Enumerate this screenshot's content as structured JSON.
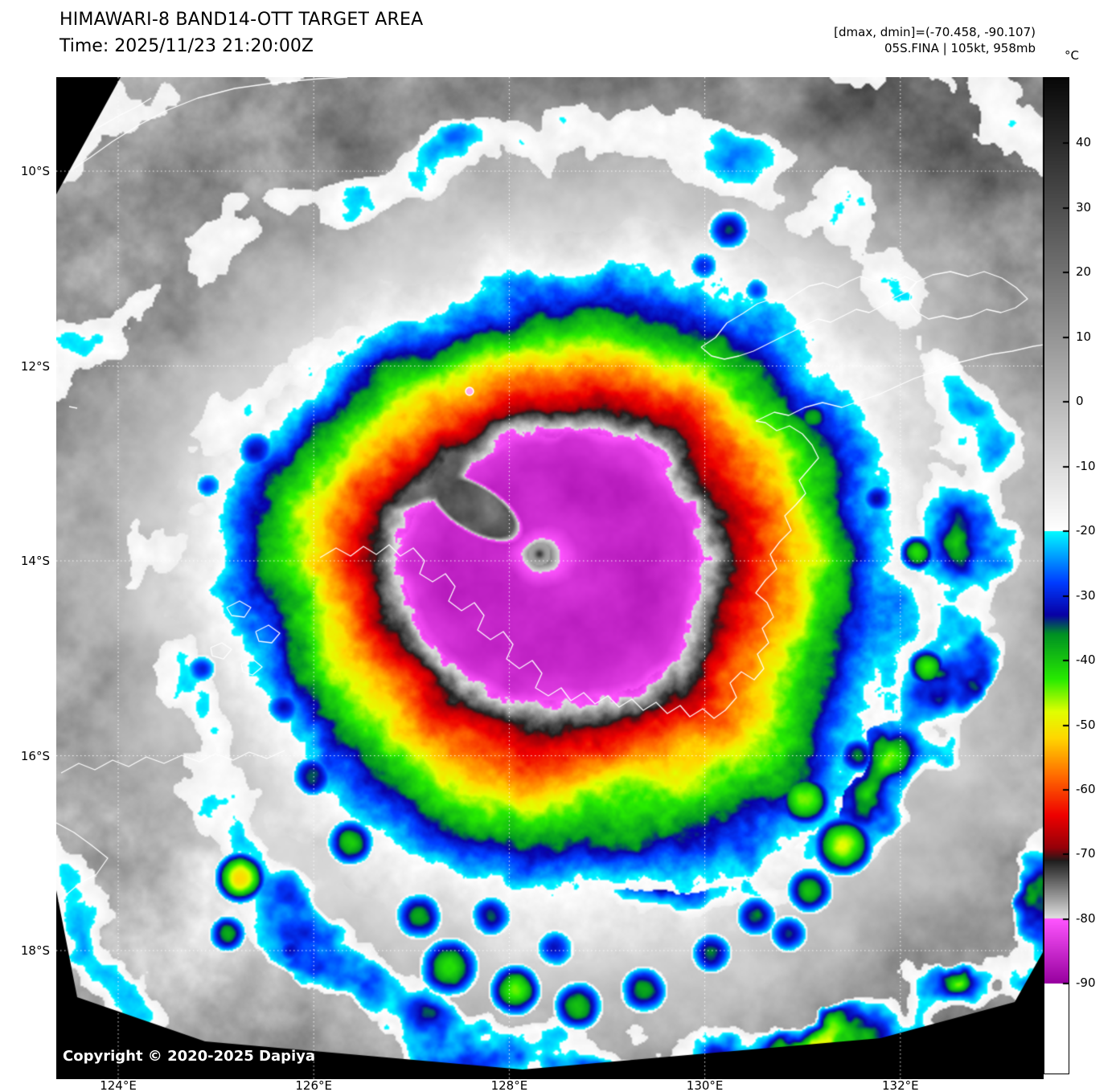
{
  "header": {
    "title": "HIMAWARI-8 BAND14-OTT TARGET AREA",
    "time_label": "Time: 2025/11/23 21:20:00Z",
    "dmax_dmin": "[dmax, dmin]=(-70.458, -90.107)",
    "storm_info": "05S.FINA | 105kt, 958mb"
  },
  "colorbar": {
    "unit": "°C",
    "ticks": [
      {
        "label": "40",
        "value": 40
      },
      {
        "label": "30",
        "value": 30
      },
      {
        "label": "20",
        "value": 20
      },
      {
        "label": "10",
        "value": 10
      },
      {
        "label": "0",
        "value": 0
      },
      {
        "label": "-10",
        "value": -10
      },
      {
        "label": "-20",
        "value": -20
      },
      {
        "label": "-30",
        "value": -30
      },
      {
        "label": "-40",
        "value": -40
      },
      {
        "label": "-50",
        "value": -50
      },
      {
        "label": "-60",
        "value": -60
      },
      {
        "label": "-70",
        "value": -70
      },
      {
        "label": "-80",
        "value": -80
      },
      {
        "label": "-90",
        "value": -90
      }
    ]
  },
  "axes": {
    "lat_ticks": [
      {
        "label": "10°S",
        "value": 10
      },
      {
        "label": "12°S",
        "value": 12
      },
      {
        "label": "14°S",
        "value": 14
      },
      {
        "label": "16°S",
        "value": 16
      },
      {
        "label": "18°S",
        "value": 18
      }
    ],
    "lon_ticks": [
      {
        "label": "124°E",
        "value": 124
      },
      {
        "label": "126°E",
        "value": 126
      },
      {
        "label": "128°E",
        "value": 128
      },
      {
        "label": "130°E",
        "value": 130
      },
      {
        "label": "132°E",
        "value": 132
      }
    ]
  },
  "footer": {
    "copyright": "Copyright © 2020-2025 Dapiya"
  }
}
